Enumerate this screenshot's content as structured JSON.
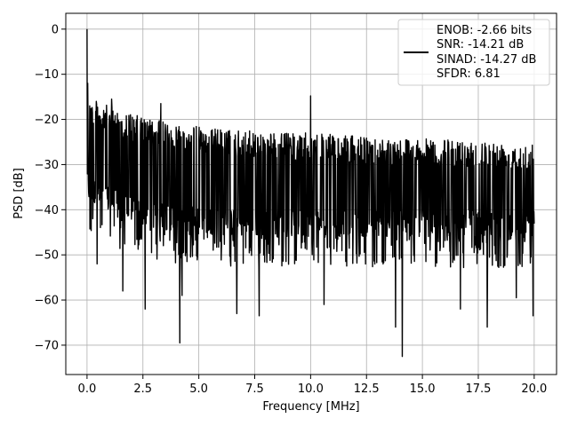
{
  "chart_data": {
    "type": "line",
    "title": "",
    "xlabel": "Frequency [MHz]",
    "ylabel": "PSD [dB]",
    "xlim": [
      -0.95,
      21.0
    ],
    "ylim": [
      -76.5,
      3.5
    ],
    "x_ticks": [
      0.0,
      2.5,
      5.0,
      7.5,
      10.0,
      12.5,
      15.0,
      17.5,
      20.0
    ],
    "x_tick_labels": [
      "0.0",
      "2.5",
      "5.0",
      "7.5",
      "10.0",
      "12.5",
      "15.0",
      "17.5",
      "20.0"
    ],
    "y_ticks": [
      0,
      -10,
      -20,
      -30,
      -40,
      -50,
      -60,
      -70
    ],
    "y_tick_labels": [
      "0",
      "−10",
      "−20",
      "−30",
      "−40",
      "−50",
      "−60",
      "−70"
    ],
    "grid": true,
    "legend_position": "top-right",
    "legend_lines": [
      "ENOB: -2.66 bits",
      "SNR: -14.21 dB",
      "SINAD: -14.27 dB",
      "SFDR: 6.81"
    ],
    "series_color": "#000000",
    "series": [
      {
        "x_range": [
          0.0,
          20.0
        ],
        "envelope_upper": [
          -15,
          -18,
          -20,
          -21,
          -22,
          -22.5,
          -23,
          -23,
          -23.5,
          -24,
          -24,
          -24.5,
          -24.5,
          -25,
          -25
        ],
        "envelope_lower": [
          -38,
          -42,
          -44,
          -45,
          -45.5,
          -46,
          -46,
          -46,
          -46,
          -46,
          -46,
          -46,
          -46,
          -46,
          -46
        ],
        "peaks": [
          {
            "x": 0.0,
            "y": 0
          },
          {
            "x": 0.03,
            "y": -12
          },
          {
            "x": 0.12,
            "y": -17
          },
          {
            "x": 1.1,
            "y": -15.5
          },
          {
            "x": 3.3,
            "y": -16.5
          },
          {
            "x": 10.0,
            "y": -14.8
          }
        ],
        "dips": [
          {
            "x": 0.45,
            "y": -52
          },
          {
            "x": 1.6,
            "y": -58
          },
          {
            "x": 2.6,
            "y": -62
          },
          {
            "x": 4.15,
            "y": -69.5
          },
          {
            "x": 4.25,
            "y": -59
          },
          {
            "x": 6.7,
            "y": -63
          },
          {
            "x": 7.7,
            "y": -63.5
          },
          {
            "x": 10.6,
            "y": -61
          },
          {
            "x": 13.8,
            "y": -66
          },
          {
            "x": 14.1,
            "y": -72.5
          },
          {
            "x": 16.7,
            "y": -62
          },
          {
            "x": 17.9,
            "y": -66
          },
          {
            "x": 19.2,
            "y": -59.5
          },
          {
            "x": 19.95,
            "y": -63.5
          }
        ]
      }
    ]
  }
}
